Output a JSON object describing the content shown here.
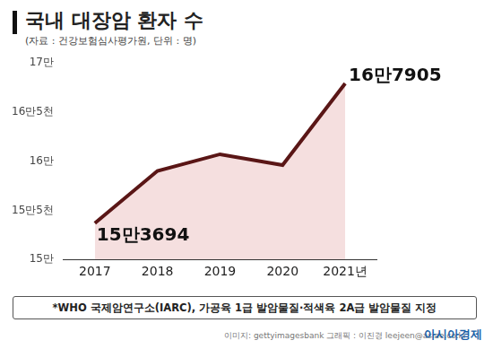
{
  "chart_data": {
    "type": "line",
    "title": "국내 대장암 환자 수",
    "subtitle": "(자료 : 건강보험심사평가원, 단위 : 명)",
    "note": "*WHO 국제암연구소(IARC), 가공육 1급 발암물질·적색육 2A급 발암물질 지정",
    "credits": "이미지: gettyimagesbank   그래픽 : 이진경 leejeen@asiae.co.kr",
    "brand": "아시아경제",
    "categories": [
      "2017",
      "2018",
      "2019",
      "2020",
      "2021년"
    ],
    "values": [
      153694,
      159000,
      160700,
      159600,
      167905
    ],
    "value_labels": [
      "15만3694",
      null,
      null,
      null,
      "16만7905"
    ],
    "data_labels": true,
    "color": "#5a1616",
    "ylim": [
      150000,
      170000
    ],
    "yticks": [
      {
        "value": 150000,
        "label": "15만"
      },
      {
        "value": 155000,
        "label": "15만5천"
      },
      {
        "value": 160000,
        "label": "16만"
      },
      {
        "value": 165000,
        "label": "16만5천"
      },
      {
        "value": 170000,
        "label": "17만"
      }
    ],
    "grid": false
  }
}
